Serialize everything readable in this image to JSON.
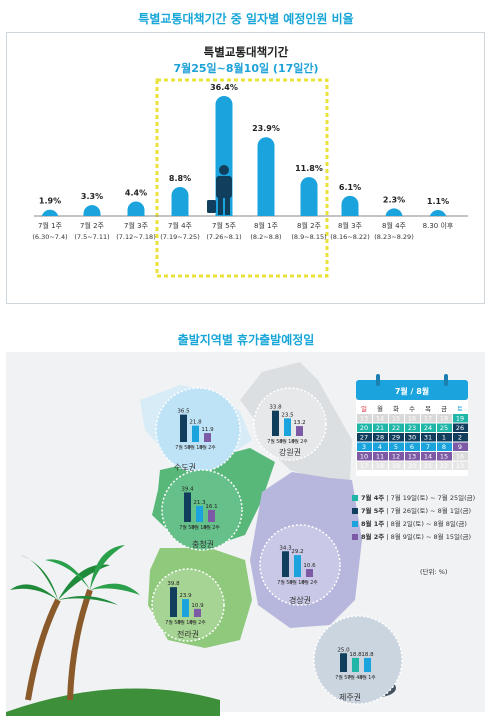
{
  "title1": "특별교통대책기간 중 일자별 예정인원 비율",
  "chart1_title": "특별교통대책기간",
  "chart1_subtitle": "7월25일~8월10일 (17일간)",
  "chart_data": [
    {
      "type": "bar",
      "title": "특별교통대책기간",
      "subtitle": "7월25일~8월10일 (17일간)",
      "unit": "%",
      "categories": [
        "7월 1주",
        "7월 2주",
        "7월 3주",
        "7월 4주",
        "7월 5주",
        "8월 1주",
        "8월 2주",
        "8월 3주",
        "8월 4주",
        "8.30 이후"
      ],
      "ranges": [
        "(6.30~7.4)",
        "(7.5~7.11)",
        "(7.12~7.18)",
        "(7.19~7.25)",
        "(7.26~8.1)",
        "(8.2~8.8)",
        "(8.9~8.15)",
        "(8.16~8.22)",
        "(8.23~8.29)",
        ""
      ],
      "values": [
        1.9,
        3.3,
        4.4,
        8.8,
        36.4,
        23.9,
        11.8,
        6.1,
        2.3,
        1.1
      ],
      "value_labels": [
        "1.9%",
        "3.3%",
        "4.4%",
        "8.8%",
        "36.4%",
        "23.9%",
        "11.8%",
        "6.1%",
        "2.3%",
        "1.1%"
      ],
      "highlight": "7월 4주 ~ 8월 2주",
      "colors": {
        "bar": "#1ba3de",
        "highlight_border": "#e9e23b"
      }
    },
    {
      "type": "bar",
      "title": "출발지역별 휴가출발예정일",
      "unit": "%",
      "legend": [
        "7월 4주 | 7월 19일(토) ~ 7월 25일(금)",
        "7월 5주 | 7월 26일(토) ~ 8월 1일(금)",
        "8월 1주 | 8월 2일(토) ~ 8월 8일(금)",
        "8월 2주 | 8월 9일(토) ~ 8월 15일(금)"
      ],
      "unit_note": "(단위: %)",
      "categories": [
        "7월 5주",
        "8월 1주",
        "8월 2주"
      ],
      "regions": [
        {
          "name": "수도권",
          "values": [
            36.5,
            21.8,
            11.9
          ],
          "labels": [
            "7월 5주",
            "8월 1주",
            "8월 2주"
          ]
        },
        {
          "name": "강원권",
          "values": [
            33.8,
            23.5,
            13.2
          ],
          "labels": [
            "7월 5주",
            "8월 1주",
            "8월 2주"
          ]
        },
        {
          "name": "충청권",
          "values": [
            39.4,
            21.3,
            16.1
          ],
          "labels": [
            "7월 5주",
            "8월 1주",
            "8월 2주"
          ]
        },
        {
          "name": "경상권",
          "values": [
            34.3,
            29.2,
            10.6
          ],
          "labels": [
            "7월 5주",
            "8월 1주",
            "8월 2주"
          ]
        },
        {
          "name": "전라권",
          "values": [
            39.8,
            23.9,
            10.9
          ],
          "labels": [
            "7월 5주",
            "8월 1주",
            "8월 2주"
          ]
        },
        {
          "name": "제주권",
          "values": [
            25.0,
            18.8,
            18.8
          ],
          "labels": [
            "7월 5주",
            "7월 4주",
            "8월 1주"
          ]
        }
      ],
      "colors": {
        "s1": "#123e5e",
        "s2": "#1ba3de",
        "s3": "#7d5aa6",
        "s4": "#1fb6a8"
      }
    }
  ],
  "title2": "출발지역별 휴가출발예정일",
  "calendar": {
    "header": "7월 / 8월",
    "weekdays": [
      "일",
      "월",
      "화",
      "수",
      "목",
      "금",
      "토"
    ],
    "rows": [
      [
        "13",
        "14",
        "15",
        "16",
        "17",
        "18",
        "19"
      ],
      [
        "20",
        "21",
        "22",
        "23",
        "24",
        "25",
        "26"
      ],
      [
        "27",
        "28",
        "29",
        "30",
        "31",
        "1",
        "2"
      ],
      [
        "3",
        "4",
        "5",
        "6",
        "7",
        "8",
        "9"
      ],
      [
        "10",
        "11",
        "12",
        "13",
        "14",
        "15",
        "16"
      ],
      [
        "17",
        "18",
        "19",
        "20",
        "21",
        "22",
        "23"
      ]
    ]
  },
  "legend_items": [
    {
      "week": "7월 4주",
      "range": "7월 19일(토) ~ 7월 25일(금)",
      "color": "#1fb6a8"
    },
    {
      "week": "7월 5주",
      "range": "7월 26일(토) ~ 8월 1일(금)",
      "color": "#123e5e"
    },
    {
      "week": "8월 1주",
      "range": "8월 2일(토) ~ 8월 8일(금)",
      "color": "#1ba3de"
    },
    {
      "week": "8월 2주",
      "range": "8월 9일(토) ~ 8월 15일(금)",
      "color": "#7d5aa6"
    }
  ],
  "unit_note": "(단위: %)",
  "regions_display": [
    "수도권",
    "강원권",
    "충청권",
    "경상권",
    "전라권",
    "제주권"
  ]
}
